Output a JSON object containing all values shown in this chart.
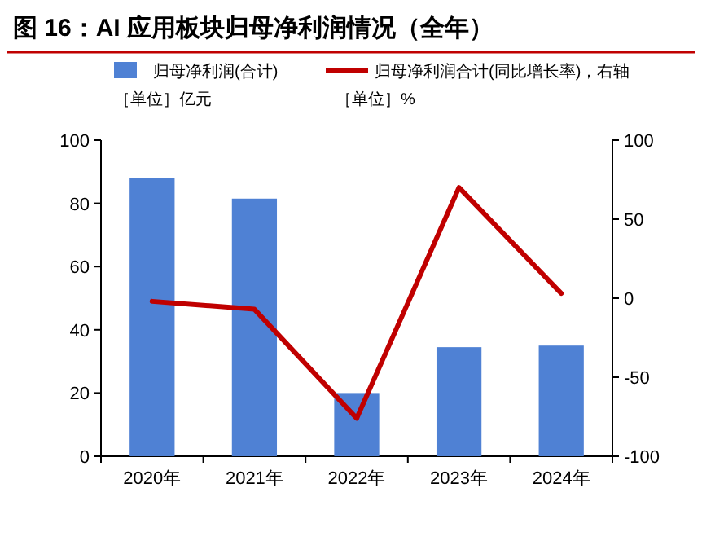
{
  "chart_data": {
    "type": "bar",
    "title": "图 16：AI 应用板块归母净利润情况（全年）",
    "categories": [
      "2020年",
      "2021年",
      "2022年",
      "2023年",
      "2024年"
    ],
    "series": [
      {
        "name": "归母净利润(合计)［单位］亿元",
        "color": "#4f81d4",
        "values": [
          88,
          81.5,
          20,
          34.5,
          35
        ]
      },
      {
        "name": "归母净利润合计(同比增长率)，右轴［单位］%",
        "type": "line",
        "axis": "y2",
        "color": "#c00000",
        "values": [
          -2,
          -7,
          -76,
          70,
          3
        ]
      }
    ],
    "ylim": [
      0,
      100
    ],
    "yticks": [
      0,
      20,
      40,
      60,
      80,
      100
    ],
    "y2lim": [
      -100,
      100
    ],
    "y2ticks": [
      -100,
      -50,
      0,
      50,
      100
    ],
    "legend": "top",
    "grid": false,
    "marker": "none",
    "line_style": "solid"
  }
}
